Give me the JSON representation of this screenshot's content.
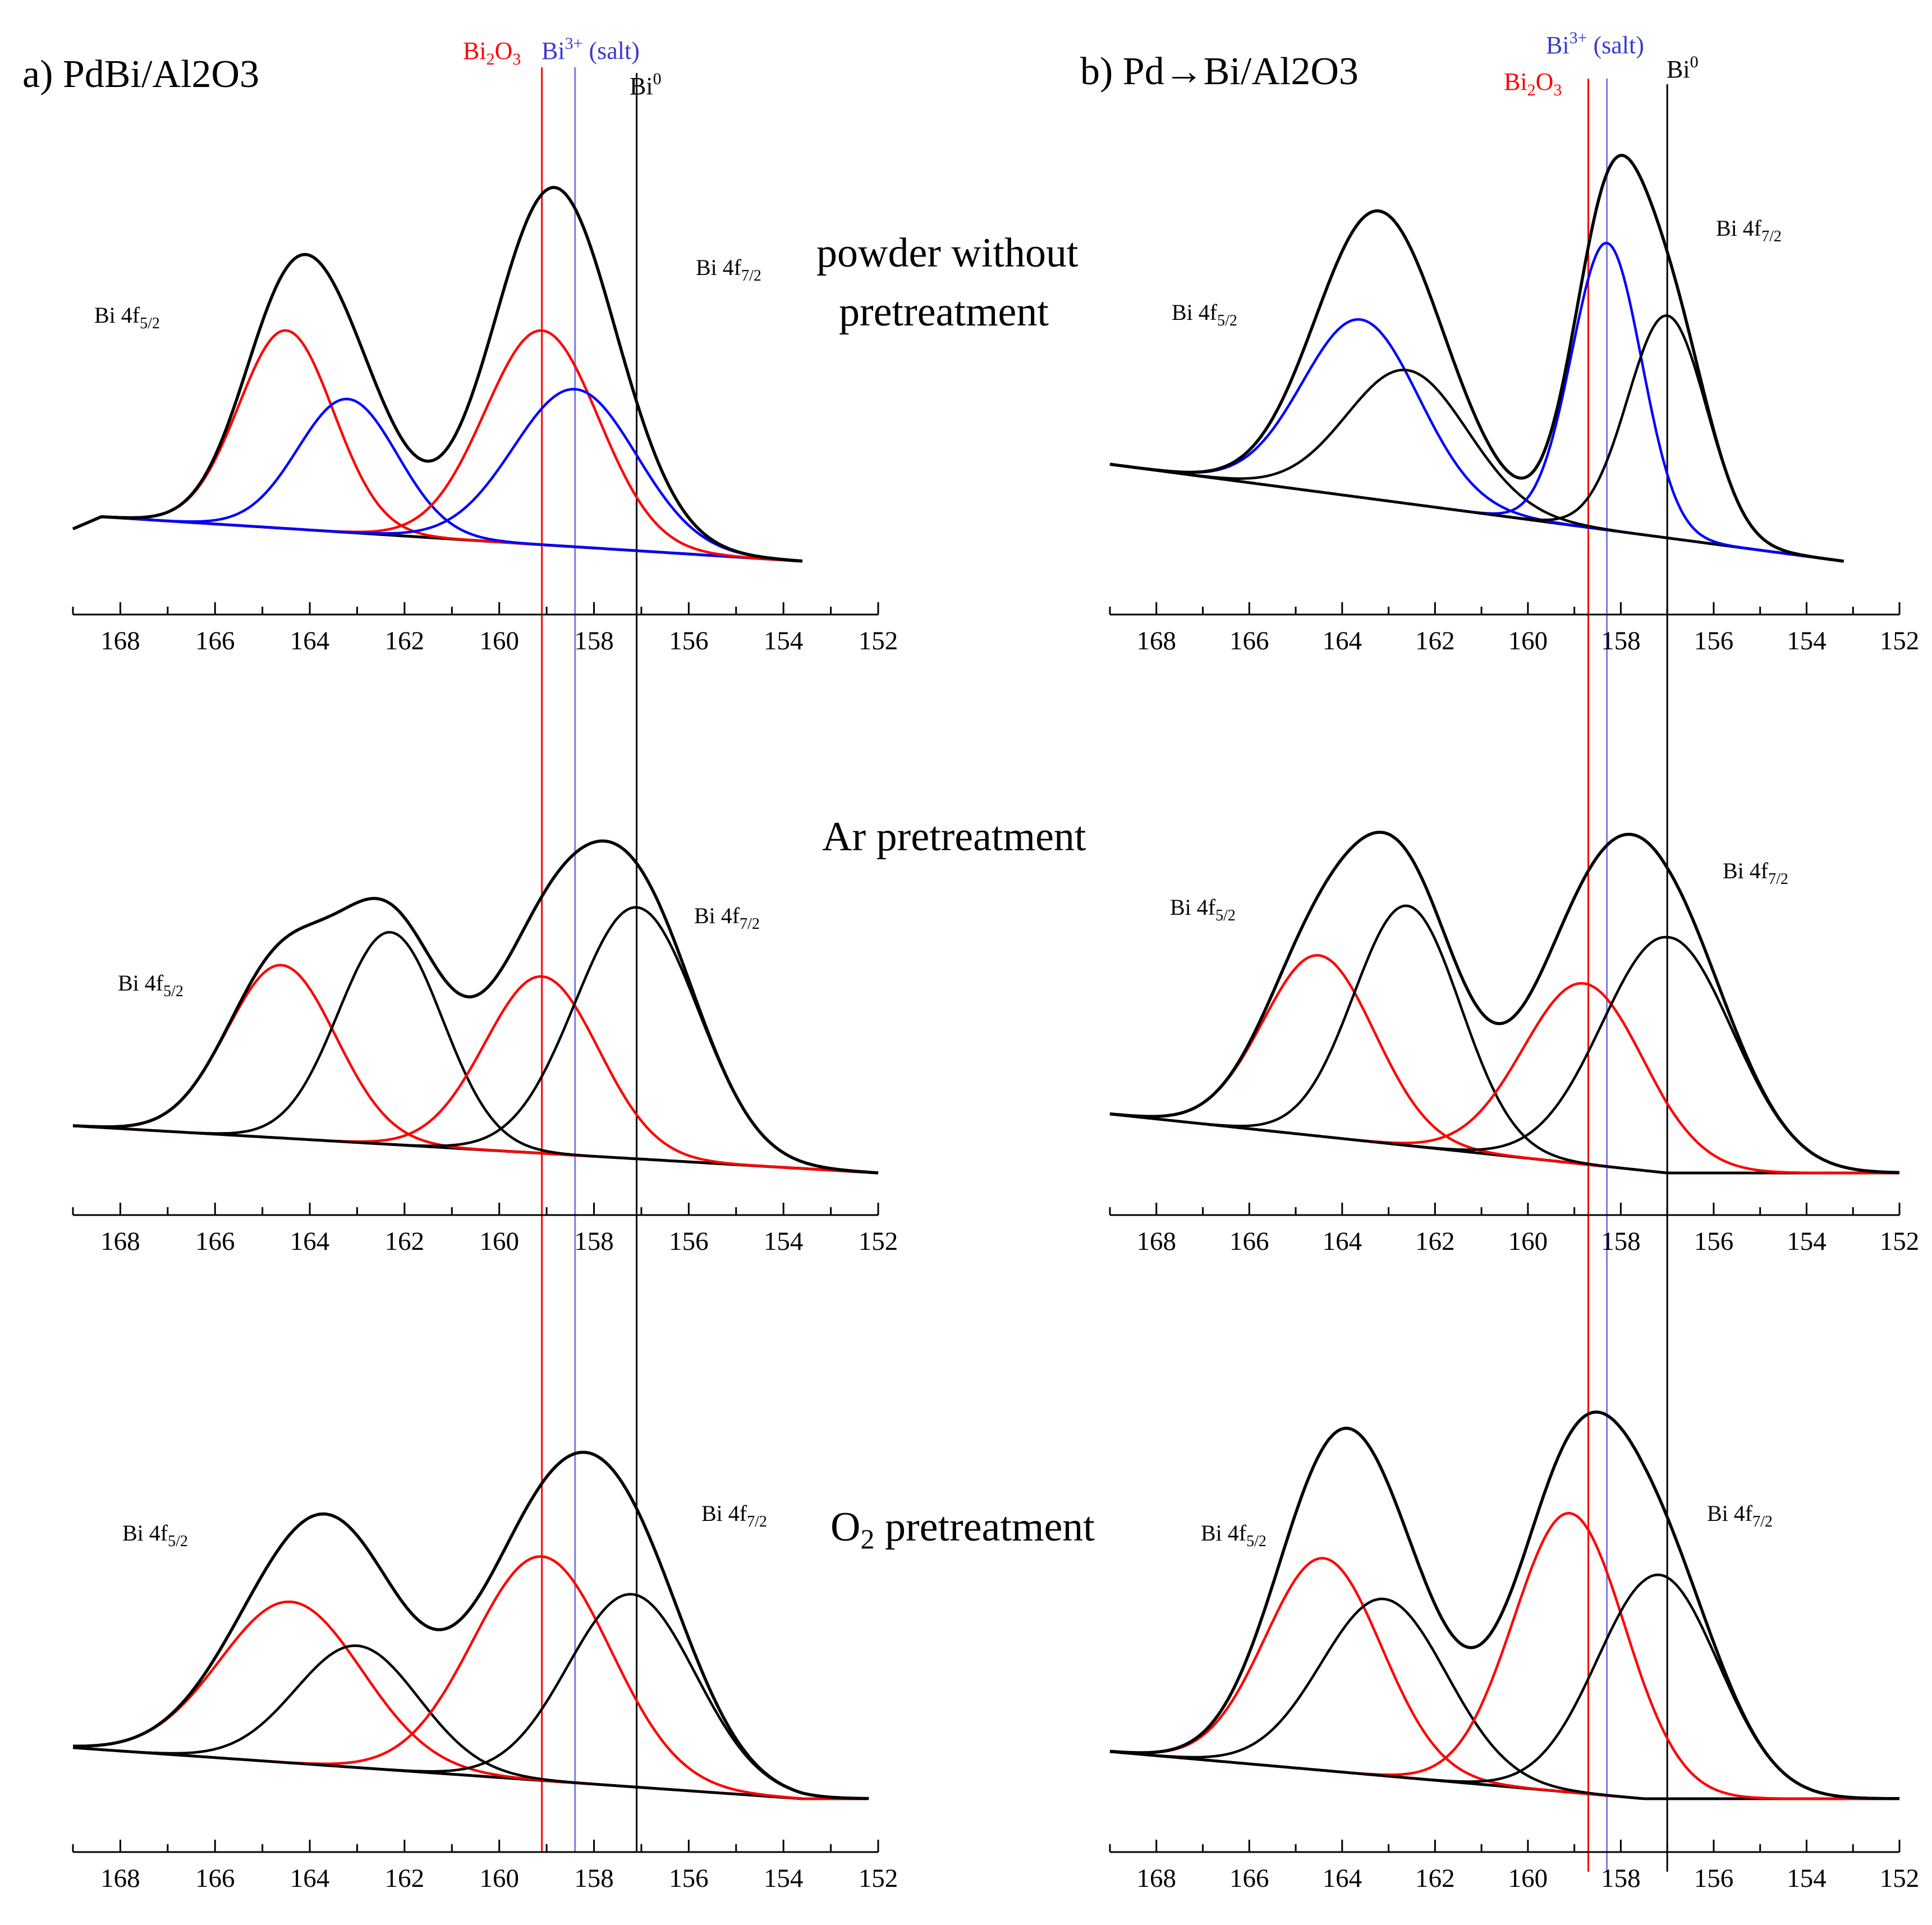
{
  "panel_titles": {
    "a": "a) PdBi/Al2O3",
    "b": "b) Pd→Bi/Al2O3"
  },
  "condition_labels": [
    "powder without pretreatment",
    "Ar pretreatment",
    "O2 pretreatment"
  ],
  "colors": {
    "envelope": "#000000",
    "bi2o3": "#ff0000",
    "bi3_salt": "#0000ff",
    "bi3_salt_line": "#7a7ae6",
    "bi0": "#000000"
  },
  "chart_data": [
    {
      "type": "line",
      "panel": "a",
      "row": 0,
      "xlim": [
        169,
        152
      ],
      "xticks": [
        168,
        166,
        164,
        162,
        160,
        158,
        156,
        154,
        152
      ],
      "x_range": [
        169,
        153.6
      ],
      "background": {
        "x": [
          169,
          168.4,
          153.6
        ],
        "y": [
          8,
          11,
          0
        ]
      },
      "components": [
        {
          "color": "red",
          "center": 164.5,
          "width": 1.0,
          "height": 49
        },
        {
          "color": "blue",
          "center": 163.2,
          "width": 1.05,
          "height": 33
        },
        {
          "color": "red",
          "center": 159.1,
          "width": 1.2,
          "height": 53
        },
        {
          "color": "blue",
          "center": 158.4,
          "width": 1.3,
          "height": 39
        }
      ],
      "peak_labels": [
        "Bi 4f5/2",
        "Bi 4f7/2"
      ]
    },
    {
      "type": "line",
      "panel": "a",
      "row": 1,
      "xlim": [
        169,
        152
      ],
      "xticks": [
        168,
        166,
        164,
        162,
        160,
        158,
        156,
        154,
        152
      ],
      "x_range": [
        169,
        152
      ],
      "background": {
        "x": [
          169,
          152
        ],
        "y": [
          12,
          0
        ]
      },
      "components": [
        {
          "color": "red",
          "center": 164.6,
          "width": 1.15,
          "height": 44
        },
        {
          "color": "black",
          "center": 162.3,
          "width": 1.1,
          "height": 54
        },
        {
          "color": "red",
          "center": 159.1,
          "width": 1.2,
          "height": 45
        },
        {
          "color": "black",
          "center": 157.1,
          "width": 1.3,
          "height": 64
        }
      ],
      "peak_labels": [
        "Bi 4f5/2",
        "Bi 4f7/2"
      ]
    },
    {
      "type": "line",
      "panel": "a",
      "row": 2,
      "xlim": [
        169,
        152
      ],
      "xticks": [
        168,
        166,
        164,
        162,
        160,
        158,
        156,
        154,
        152
      ],
      "x_range": [
        169,
        152.2
      ],
      "background": {
        "x": [
          169,
          153.6
        ],
        "y": [
          13,
          0
        ]
      },
      "components": [
        {
          "color": "red",
          "center": 164.4,
          "width": 1.5,
          "height": 41
        },
        {
          "color": "black",
          "center": 163.0,
          "width": 1.3,
          "height": 31
        },
        {
          "color": "red",
          "center": 159.1,
          "width": 1.45,
          "height": 57
        },
        {
          "color": "black",
          "center": 157.2,
          "width": 1.35,
          "height": 49
        }
      ],
      "peak_labels": [
        "Bi 4f5/2",
        "Bi 4f7/2"
      ]
    },
    {
      "type": "line",
      "panel": "b",
      "row": 0,
      "xlim": [
        169,
        152
      ],
      "xticks": [
        168,
        166,
        164,
        162,
        160,
        158,
        156,
        154,
        152
      ],
      "x_range": [
        169,
        153.2
      ],
      "background": {
        "x": [
          169,
          153.2
        ],
        "y": [
          24,
          0
        ]
      },
      "components": [
        {
          "color": "blue",
          "center": 163.6,
          "width": 1.25,
          "height": 44
        },
        {
          "color": "black",
          "center": 162.6,
          "width": 1.3,
          "height": 33
        },
        {
          "color": "blue",
          "center": 158.3,
          "width": 0.75,
          "height": 71
        },
        {
          "color": "black",
          "center": 157.0,
          "width": 0.85,
          "height": 55
        }
      ],
      "peak_labels": [
        "Bi 4f5/2",
        "Bi 4f7/2"
      ]
    },
    {
      "type": "line",
      "panel": "b",
      "row": 1,
      "xlim": [
        169,
        152
      ],
      "xticks": [
        168,
        166,
        164,
        162,
        160,
        158,
        156,
        154,
        152
      ],
      "x_range": [
        169,
        152
      ],
      "background": {
        "x": [
          169,
          157
        ],
        "y": [
          15,
          0
        ]
      },
      "components": [
        {
          "color": "red",
          "center": 164.5,
          "width": 1.2,
          "height": 46
        },
        {
          "color": "black",
          "center": 162.6,
          "width": 1.15,
          "height": 61
        },
        {
          "color": "red",
          "center": 158.8,
          "width": 1.3,
          "height": 46
        },
        {
          "color": "black",
          "center": 157.0,
          "width": 1.4,
          "height": 60
        }
      ],
      "peak_labels": [
        "Bi 4f5/2",
        "Bi 4f7/2"
      ]
    },
    {
      "type": "line",
      "panel": "b",
      "row": 2,
      "xlim": [
        169,
        152
      ],
      "xticks": [
        168,
        166,
        164,
        162,
        160,
        158,
        156,
        154,
        152
      ],
      "x_range": [
        169,
        152
      ],
      "background": {
        "x": [
          169,
          157.5
        ],
        "y": [
          12,
          0
        ]
      },
      "components": [
        {
          "color": "red",
          "center": 164.4,
          "width": 1.25,
          "height": 54
        },
        {
          "color": "black",
          "center": 163.1,
          "width": 1.35,
          "height": 45
        },
        {
          "color": "red",
          "center": 159.1,
          "width": 1.2,
          "height": 71
        },
        {
          "color": "black",
          "center": 157.2,
          "width": 1.3,
          "height": 57
        }
      ],
      "peak_labels": [
        "Bi 4f5/2",
        "Bi 4f7/2"
      ]
    }
  ],
  "reference_lines": {
    "labels": {
      "bi2o3": "Bi2O3",
      "bi3_salt": "Bi3+ (salt)",
      "bi0": "Bi0"
    },
    "panel_a": {
      "bi2o3": 159.1,
      "bi3_salt": 158.4,
      "bi0": 157.1
    },
    "panel_b": {
      "bi2o3": 158.7,
      "bi3_salt": 158.3,
      "bi0": 157.0
    }
  }
}
